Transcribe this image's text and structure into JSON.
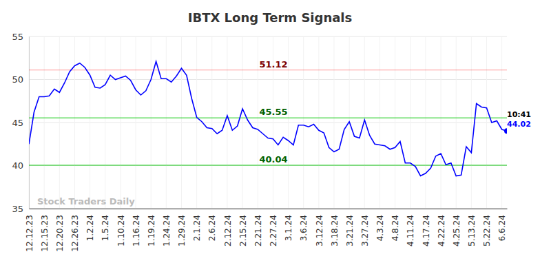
{
  "chart_data": {
    "type": "line",
    "title": "IBTX Long Term Signals",
    "categories": [
      "12.12.23",
      null,
      null,
      "12.15.23",
      null,
      null,
      "12.20.23",
      null,
      null,
      "12.26.23",
      null,
      null,
      "1.2.24",
      null,
      null,
      "1.5.24",
      null,
      null,
      "1.10.24",
      null,
      null,
      "1.16.24",
      null,
      null,
      "1.19.24",
      null,
      null,
      "1.24.24",
      null,
      null,
      "1.29.24",
      null,
      null,
      "2.1.24",
      null,
      null,
      "2.6.24",
      null,
      null,
      "2.12.24",
      null,
      null,
      "2.15.24",
      null,
      null,
      "2.21.24",
      null,
      null,
      "2.27.24",
      null,
      null,
      "3.1.24",
      null,
      null,
      "3.6.24",
      null,
      null,
      "3.12.24",
      null,
      null,
      "3.18.24",
      null,
      null,
      "3.21.24",
      null,
      null,
      "3.27.24",
      null,
      null,
      "4.3.24",
      null,
      null,
      "4.8.24",
      null,
      null,
      "4.11.24",
      null,
      null,
      "4.17.24",
      null,
      null,
      "4.22.24",
      null,
      null,
      "4.25.24",
      null,
      null,
      "5.13.24",
      null,
      null,
      "5.22.24",
      null,
      null,
      "6.6.24",
      null
    ],
    "values": [
      42.5,
      46.2,
      48.0,
      48.0,
      48.1,
      48.9,
      48.5,
      49.6,
      50.9,
      51.6,
      51.9,
      51.4,
      50.5,
      49.1,
      49.0,
      49.4,
      50.5,
      50.0,
      50.2,
      50.4,
      49.9,
      48.8,
      48.2,
      48.7,
      50.0,
      52.1,
      50.1,
      50.1,
      49.7,
      50.4,
      51.3,
      50.5,
      47.8,
      45.6,
      45.1,
      44.4,
      44.3,
      43.7,
      44.1,
      45.8,
      44.1,
      44.6,
      46.6,
      45.3,
      44.4,
      44.2,
      43.7,
      43.2,
      43.1,
      42.4,
      43.3,
      42.9,
      42.4,
      44.7,
      44.7,
      44.5,
      44.8,
      44.1,
      43.8,
      42.1,
      41.6,
      41.9,
      44.2,
      45.1,
      43.4,
      43.2,
      45.3,
      43.5,
      42.5,
      42.4,
      42.3,
      41.9,
      42.1,
      42.8,
      40.3,
      40.3,
      39.9,
      38.8,
      39.1,
      39.7,
      41.1,
      41.4,
      40.1,
      40.3,
      38.8,
      38.9,
      42.2,
      41.5,
      47.2,
      46.8,
      46.7,
      45.0,
      45.2,
      44.2,
      44.02
    ],
    "color": "#0000ff",
    "reference_lines": [
      {
        "value": 51.12,
        "color": "#ff0000"
      },
      {
        "value": 45.55,
        "color": "#00c800"
      },
      {
        "value": 40.04,
        "color": "#00c800"
      }
    ],
    "last_label": "10:41",
    "watermark": "Stock Traders Daily",
    "ylim": [
      35,
      55
    ],
    "yticks": [
      35,
      40,
      45,
      50,
      55
    ],
    "grid": true
  }
}
